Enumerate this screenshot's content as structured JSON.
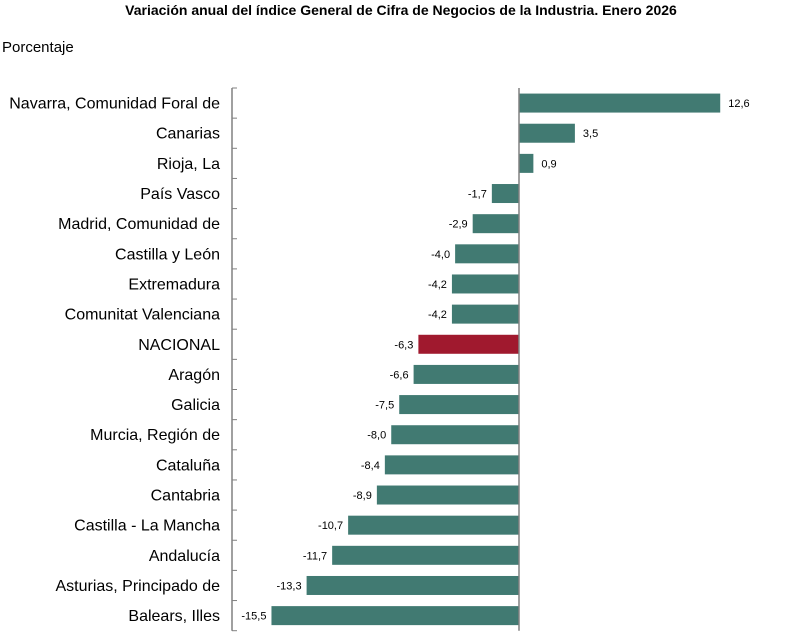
{
  "chart_data": {
    "type": "bar",
    "orientation": "horizontal",
    "title": "Variación anual del índice General de Cifra de Negocios de la Industria. Enero 2026",
    "ylabel": "Porcentaje",
    "xlabel": "",
    "xlim": [
      -16,
      13
    ],
    "categories": [
      "Navarra, Comunidad Foral de",
      "Canarias",
      "Rioja, La",
      "País Vasco",
      "Madrid, Comunidad de",
      "Castilla y León",
      "Extremadura",
      "Comunitat Valenciana",
      "NACIONAL",
      "Aragón",
      "Galicia",
      "Murcia, Región de",
      "Cataluña",
      "Cantabria",
      "Castilla - La Mancha",
      "Andalucía",
      "Asturias, Principado de",
      "Balears, Illes"
    ],
    "values": [
      12.6,
      3.5,
      0.9,
      -1.7,
      -2.9,
      -4.0,
      -4.2,
      -4.2,
      -6.3,
      -6.6,
      -7.5,
      -8.0,
      -8.4,
      -8.9,
      -10.7,
      -11.7,
      -13.3,
      -15.5
    ],
    "value_labels": [
      "12,6",
      "3,5",
      "0,9",
      "-1,7",
      "-2,9",
      "-4,0",
      "-4,2",
      "-4,2",
      "-6,3",
      "-6,6",
      "-7,5",
      "-8,0",
      "-8,4",
      "-8,9",
      "-10,7",
      "-11,7",
      "-13,3",
      "-15,5"
    ],
    "highlight_category": "NACIONAL",
    "colors": {
      "bar": "#417a72",
      "highlight": "#a0192e",
      "axis": "#808080"
    }
  }
}
